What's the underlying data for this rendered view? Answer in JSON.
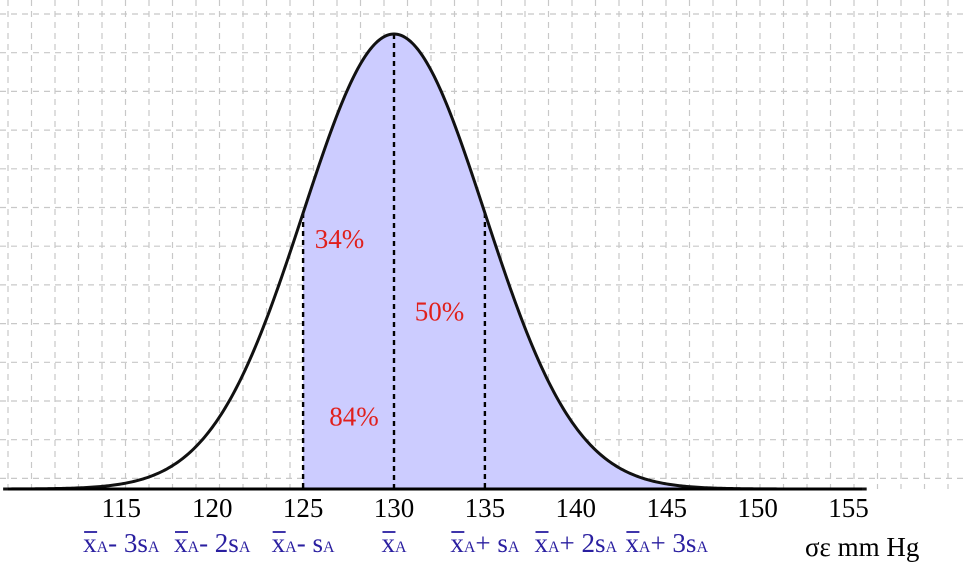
{
  "chart_data": {
    "type": "area",
    "distribution": "normal",
    "mean": 130,
    "sd": 5,
    "x_ticks": [
      115,
      120,
      125,
      130,
      135,
      140,
      145,
      150,
      155
    ],
    "xlim": [
      108.5,
      156
    ],
    "x_unit_label": "σε mm Hg",
    "shaded_region": [
      125,
      150
    ],
    "reference_lines": [
      125,
      130,
      135
    ],
    "annotations": [
      {
        "text": "34%",
        "x": 127,
        "y": 0.53
      },
      {
        "text": "50%",
        "x": 132.5,
        "y": 0.37
      },
      {
        "text": "84%",
        "x": 127.8,
        "y": 0.14
      }
    ],
    "sd_markers": [
      {
        "x": 115,
        "base": "x",
        "sub": "A",
        "op": "- 3s",
        "op_sub": "A"
      },
      {
        "x": 120,
        "base": "x",
        "sub": "A",
        "op": "- 2s",
        "op_sub": "A"
      },
      {
        "x": 125,
        "base": "x",
        "sub": "A",
        "op": "- s",
        "op_sub": "A"
      },
      {
        "x": 130,
        "base": "x",
        "sub": "A",
        "op": "",
        "op_sub": ""
      },
      {
        "x": 135,
        "base": "x",
        "sub": "A",
        "op": "+ s",
        "op_sub": "A"
      },
      {
        "x": 140,
        "base": "x",
        "sub": "A",
        "op": "+ 2s",
        "op_sub": "A"
      },
      {
        "x": 145,
        "base": "x",
        "sub": "A",
        "op": "+ 3s",
        "op_sub": "A"
      }
    ],
    "grid": true,
    "colors": {
      "fill": "#ccccff",
      "curve": "#111111",
      "grid": "#c8c8c8",
      "percent_text": "#e0201c",
      "marker_text": "#2a1fa0"
    }
  }
}
